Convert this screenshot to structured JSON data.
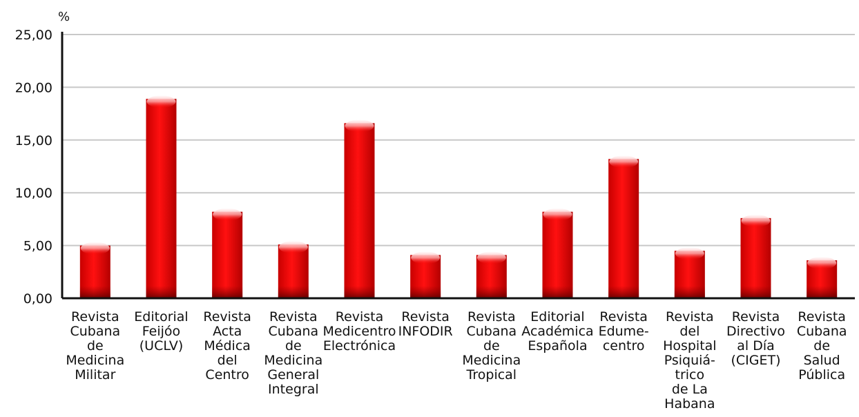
{
  "chart_data": {
    "type": "bar",
    "ylabel": "%",
    "ylim": [
      0,
      25
    ],
    "yticks": [
      "0,00",
      "5,00",
      "10,00",
      "15,00",
      "20,00",
      "25,00"
    ],
    "grid": true,
    "colors": {
      "bar": "#e00000",
      "bar_dark": "#7a0000",
      "bar_highlight": "#ffd9d9",
      "grid": "#c8c8c8",
      "axis": "#111111"
    },
    "categories": [
      "Revista Cubana de Medicina Militar",
      "Editorial Feijóo (UCLV)",
      "Revista Acta Médica del Centro",
      "Revista Cubana de Medicina General Integral",
      "Revista Medicentro Electrónica",
      "Revista INFODIR",
      "Revista Cubana de Medicina Tropical",
      "Editorial Académica Española",
      "Revista Edume-centro",
      "Revista del Hospital Psiquiá-trico de La Habana",
      "Revista Directivo al Día (CIGET)",
      "Revista Cubana de Salud Pública"
    ],
    "category_lines": [
      [
        "Revista",
        "Cubana",
        "de",
        "Medicina",
        "Militar"
      ],
      [
        "Editorial",
        "Feijóo",
        "(UCLV)"
      ],
      [
        "Revista",
        "Acta",
        "Médica",
        "del",
        "Centro"
      ],
      [
        "Revista",
        "Cubana",
        "de",
        "Medicina",
        "General",
        "Integral"
      ],
      [
        "Revista",
        "Medicentro",
        "Electrónica"
      ],
      [
        "Revista",
        "INFODIR"
      ],
      [
        "Revista",
        "Cubana",
        "de",
        "Medicina",
        "Tropical"
      ],
      [
        "Editorial",
        "Académica",
        "Española"
      ],
      [
        "Revista",
        "Edume-",
        "centro"
      ],
      [
        "Revista",
        "del",
        "Hospital",
        "Psiquiá-",
        "trico",
        "de La",
        "Habana"
      ],
      [
        "Revista",
        "Directivo",
        "al Día",
        "(CIGET)"
      ],
      [
        "Revista",
        "Cubana",
        "de",
        "Salud",
        "Pública"
      ]
    ],
    "values": [
      5.0,
      18.9,
      8.2,
      5.1,
      16.6,
      4.1,
      4.1,
      8.2,
      13.2,
      4.5,
      7.6,
      3.6
    ]
  }
}
